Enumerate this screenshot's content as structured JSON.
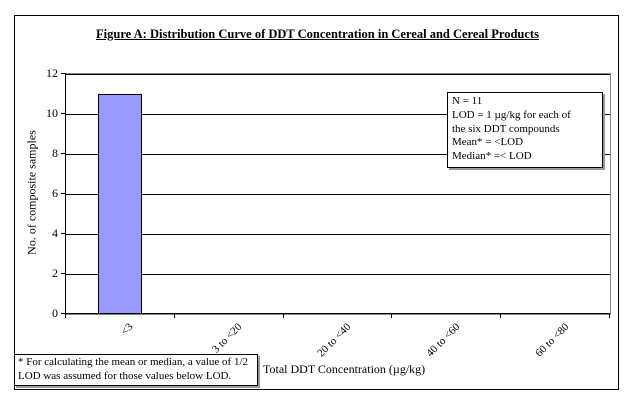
{
  "figure": {
    "title": "Figure A: Distribution Curve of DDT Concentration in Cereal and Cereal Products"
  },
  "chart_data": {
    "type": "bar",
    "title": "Figure A: Distribution Curve of DDT Concentration in Cereal and Cereal Products",
    "categories": [
      "<3",
      "3 to <20",
      "20 to <40",
      "40 to <60",
      "60 to <80"
    ],
    "values": [
      11,
      0,
      0,
      0,
      0
    ],
    "xlabel": "Total DDT Concentration (µg/kg)",
    "ylabel": "No. of composite samples",
    "ylim": [
      0,
      12
    ],
    "ytick_step": 2,
    "grid": true,
    "legend": "none",
    "bar_color": "#9999FF",
    "bar_border_color": "#000000"
  },
  "annotation_box": {
    "lines": [
      "N = 11",
      "LOD  = 1 µg/kg for each of",
      "the six DDT compounds",
      "Mean*  =  <LOD",
      "Median* =< LOD"
    ]
  },
  "footnote": {
    "lines": [
      "* For calculating the mean or median, a value of 1/2",
      "LOD was assumed for those values below LOD."
    ]
  }
}
